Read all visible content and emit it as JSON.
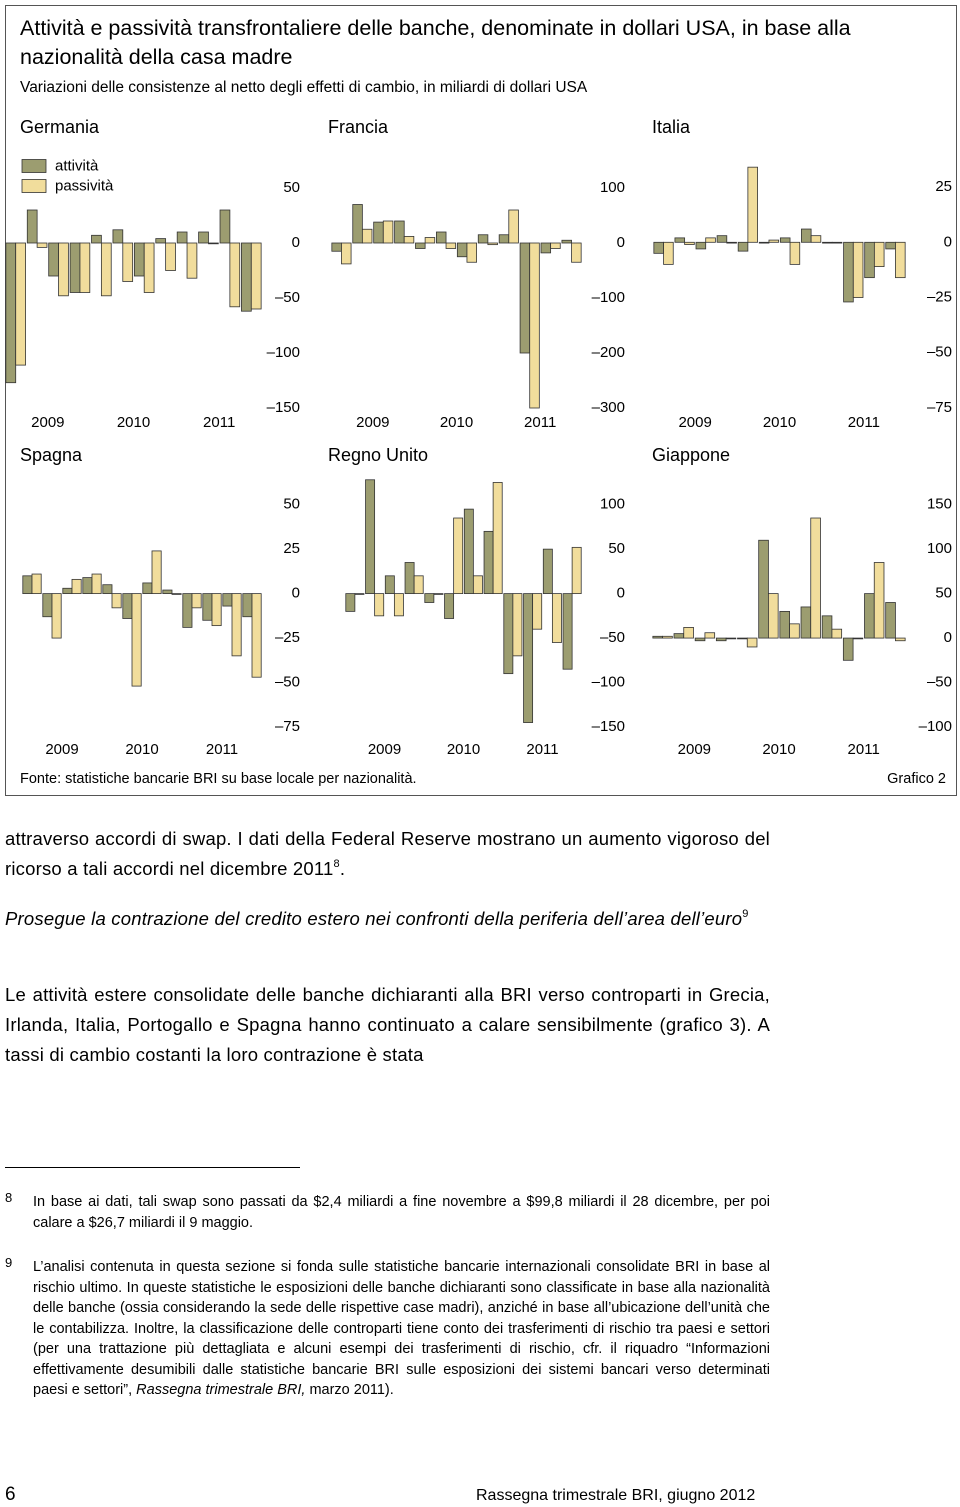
{
  "figure": {
    "title": "Attività e passività transfrontaliere delle banche, denominate in dollari USA, in base alla nazionalità della casa madre",
    "subtitle": "Variazioni delle consistenze al netto degli effetti di cambio, in miliardi di dollari USA",
    "source": "Fonte: statistiche bancarie BRI su base locale per nazionalità.",
    "label": "Grafico 2"
  },
  "chart_data": [
    {
      "type": "bar",
      "title": "Germania",
      "categories": [
        null,
        "2009",
        null,
        null,
        null,
        "2010",
        null,
        null,
        null,
        "2011",
        null,
        null
      ],
      "series": [
        {
          "name": "attività",
          "color": "#9c9d70",
          "values": [
            -127,
            30,
            -30,
            -45,
            7,
            12,
            -30,
            4,
            10,
            10,
            30,
            -62
          ]
        },
        {
          "name": "passività",
          "color": "#f1dd9c",
          "values": [
            -111,
            -4,
            -48,
            -45,
            -48,
            -35,
            -45,
            -25,
            -32,
            0,
            -58,
            -60
          ]
        }
      ],
      "ylim": [
        -150,
        85
      ],
      "yticks": [
        50,
        0,
        {
          "value": -50,
          "label": "–50"
        },
        {
          "value": -100,
          "label": "–100"
        },
        {
          "value": -150,
          "label": "–150"
        }
      ]
    },
    {
      "type": "bar",
      "title": "Francia",
      "categories": [
        null,
        "2009",
        null,
        null,
        null,
        "2010",
        null,
        null,
        null,
        "2011",
        null,
        null
      ],
      "series": [
        {
          "color": "#9c9d70",
          "values": [
            -15,
            70,
            38,
            40,
            -10,
            20,
            -25,
            15,
            15,
            -200,
            -18,
            5
          ]
        },
        {
          "color": "#f1dd9c",
          "values": [
            -38,
            25,
            40,
            12,
            10,
            -10,
            -35,
            -3,
            60,
            -300,
            -10,
            -35
          ]
        }
      ],
      "ylim": [
        -300,
        170
      ],
      "yticks": [
        100,
        0,
        {
          "value": -100,
          "label": "–100"
        },
        {
          "value": -200,
          "label": "–200"
        },
        {
          "value": -300,
          "label": "–300"
        }
      ]
    },
    {
      "type": "bar",
      "title": "Italia",
      "categories": [
        null,
        "2009",
        null,
        null,
        null,
        "2010",
        null,
        null,
        null,
        "2011",
        null,
        null
      ],
      "series": [
        {
          "color": "#9c9d70",
          "values": [
            -5,
            2,
            -3,
            3,
            -4,
            0,
            2,
            6,
            0,
            -27,
            -16,
            -3
          ]
        },
        {
          "color": "#f1dd9c",
          "values": [
            -10,
            -1,
            2,
            0,
            34,
            1,
            -10,
            3,
            0,
            -25,
            -11,
            -16
          ]
        }
      ],
      "ylim": [
        -75,
        42
      ],
      "yticks": [
        25,
        0,
        {
          "value": -25,
          "label": "–25"
        },
        {
          "value": -50,
          "label": "–50"
        },
        {
          "value": -75,
          "label": "–75"
        }
      ]
    },
    {
      "type": "bar",
      "title": "Spagna",
      "categories": [
        null,
        "2009",
        null,
        null,
        null,
        "2010",
        null,
        null,
        null,
        "2011",
        null,
        null
      ],
      "series": [
        {
          "color": "#9c9d70",
          "values": [
            10,
            -13,
            3,
            9,
            5,
            -14,
            6,
            2,
            -19,
            -15,
            -7,
            -13
          ]
        },
        {
          "color": "#f1dd9c",
          "values": [
            11,
            -25,
            8,
            11,
            -8,
            -52,
            24,
            0,
            -8,
            -18,
            -35,
            -47
          ]
        }
      ],
      "ylim": [
        -75,
        65
      ],
      "yticks": [
        50,
        25,
        0,
        {
          "value": -25,
          "label": "–25"
        },
        {
          "value": -50,
          "label": "–50"
        },
        {
          "value": -75,
          "label": "–75"
        }
      ]
    },
    {
      "type": "bar",
      "title": "Regno Unito",
      "categories": [
        null,
        "2009",
        null,
        null,
        null,
        "2010",
        null,
        null,
        null,
        "2011",
        null,
        null
      ],
      "series": [
        {
          "color": "#9c9d70",
          "values": [
            -20,
            128,
            20,
            35,
            -10,
            -28,
            95,
            70,
            -90,
            -145,
            50,
            -85
          ]
        },
        {
          "color": "#f1dd9c",
          "values": [
            0,
            -25,
            -25,
            20,
            0,
            85,
            20,
            125,
            -70,
            -40,
            -55,
            52
          ]
        }
      ],
      "ylim": [
        -150,
        130
      ],
      "yticks": [
        100,
        50,
        0,
        {
          "value": -50,
          "label": "–50"
        },
        {
          "value": -100,
          "label": "–100"
        },
        {
          "value": -150,
          "label": "–150"
        }
      ]
    },
    {
      "type": "bar",
      "title": "Giappone",
      "categories": [
        null,
        "2009",
        null,
        null,
        null,
        "2010",
        null,
        null,
        null,
        "2011",
        null,
        null
      ],
      "series": [
        {
          "color": "#9c9d70",
          "values": [
            2,
            5,
            -3,
            -3,
            0,
            110,
            30,
            35,
            25,
            -25,
            50,
            40
          ]
        },
        {
          "color": "#f1dd9c",
          "values": [
            2,
            12,
            6,
            0,
            -10,
            50,
            16,
            135,
            10,
            0,
            85,
            -3
          ]
        }
      ],
      "ylim": [
        -100,
        180
      ],
      "yticks": [
        150,
        100,
        50,
        0,
        {
          "value": -50,
          "label": "–50"
        },
        {
          "value": -100,
          "label": "–100"
        }
      ]
    }
  ],
  "body": {
    "p1": {
      "text": "attraverso accordi di swap. I dati della Federal Reserve mostrano un aumento vigoroso del ricorso a tali accordi nel dicembre 2011",
      "note": "8",
      "tail": "."
    },
    "heading": {
      "text": "Prosegue la contrazione del credito estero nei confronti della periferia dell’area dell’euro",
      "note": "9"
    },
    "p2": "Le attività estere consolidate delle banche dichiaranti alla BRI verso controparti in Grecia, Irlanda, Italia, Portogallo e Spagna hanno continuato a calare sensibilmente (grafico 3). A tassi di cambio costanti la loro contrazione è stata"
  },
  "footnotes": [
    {
      "number": "8",
      "text": "In base ai dati, tali swap sono passati da $2,4 miliardi a fine novembre a $99,8 miliardi il 28 dicembre, per poi calare a $26,7 miliardi il 9 maggio."
    },
    {
      "number": "9",
      "text": "L’analisi contenuta in questa sezione si fonda sulle statistiche bancarie internazionali consolidate BRI in base al rischio ultimo. In queste statistiche le esposizioni delle banche dichiaranti sono classificate in base alla nazionalità delle banche (ossia considerando la sede delle rispettive case madri), anziché in base all’ubicazione dell’unità che le contabilizza. Inoltre, la classificazione delle controparti tiene conto dei trasferimenti di rischio tra paesi e settori (per una trattazione più dettagliata e alcuni esempi dei trasferimenti di rischio, cfr. il riquadro “Informazioni effettivamente desumibili dalle statistiche bancarie BRI sulle esposizioni dei sistemi bancari verso determinati paesi e settori”,",
      "italic": "Rassegna trimestrale BRI,",
      "tail": "marzo 2011)."
    }
  ],
  "footer": {
    "page": "6",
    "publication": "Rassegna trimestrale BRI, giugno 2012"
  }
}
